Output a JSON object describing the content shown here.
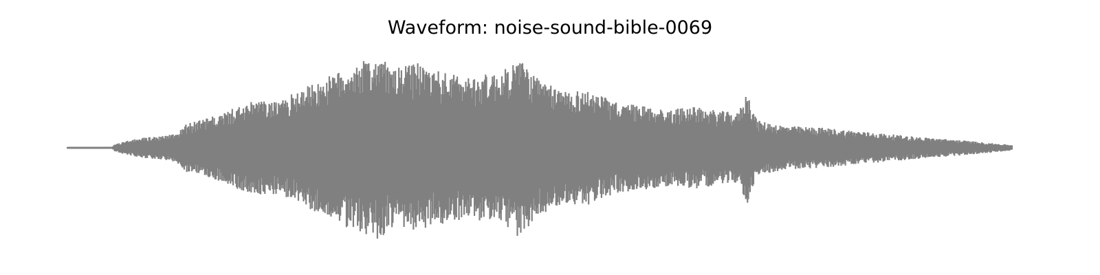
{
  "chart_data": {
    "type": "line",
    "title": "Waveform: noise-sound-bible-0069",
    "xlabel": "",
    "ylabel": "",
    "axes_visible": false,
    "grid": false,
    "color": "#808080",
    "ylim": [
      -1.0,
      1.0
    ],
    "series": [
      {
        "envelope_points": [
          [
            0.0,
            0.01
          ],
          [
            0.047,
            0.01
          ],
          [
            0.05,
            0.04
          ],
          [
            0.06,
            0.07
          ],
          [
            0.08,
            0.11
          ],
          [
            0.1,
            0.13
          ],
          [
            0.116,
            0.16
          ],
          [
            0.125,
            0.26
          ],
          [
            0.14,
            0.3
          ],
          [
            0.16,
            0.36
          ],
          [
            0.18,
            0.45
          ],
          [
            0.2,
            0.52
          ],
          [
            0.225,
            0.5
          ],
          [
            0.245,
            0.64
          ],
          [
            0.255,
            0.68
          ],
          [
            0.285,
            0.82
          ],
          [
            0.31,
            0.94
          ],
          [
            0.33,
            1.0
          ],
          [
            0.345,
            0.86
          ],
          [
            0.37,
            0.93
          ],
          [
            0.4,
            0.82
          ],
          [
            0.425,
            0.78
          ],
          [
            0.46,
            0.83
          ],
          [
            0.478,
            0.99
          ],
          [
            0.5,
            0.74
          ],
          [
            0.52,
            0.64
          ],
          [
            0.555,
            0.62
          ],
          [
            0.58,
            0.5
          ],
          [
            0.61,
            0.46
          ],
          [
            0.64,
            0.41
          ],
          [
            0.655,
            0.46
          ],
          [
            0.68,
            0.42
          ],
          [
            0.71,
            0.38
          ],
          [
            0.72,
            0.62
          ],
          [
            0.73,
            0.3
          ],
          [
            0.76,
            0.24
          ],
          [
            0.8,
            0.22
          ],
          [
            0.85,
            0.17
          ],
          [
            0.9,
            0.12
          ],
          [
            0.95,
            0.08
          ],
          [
            1.0,
            0.03
          ]
        ]
      }
    ]
  }
}
